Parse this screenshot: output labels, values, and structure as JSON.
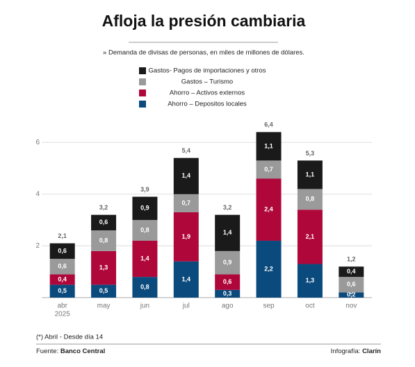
{
  "chart_data": {
    "type": "stacked_bar",
    "title": "Afloja la presión cambiaria",
    "subtitle": "» Demanda de divisas de personas, en miles de millones de dólares.",
    "categories": [
      "abr",
      "may",
      "jun",
      "jul",
      "ago",
      "sep",
      "oct",
      "nov"
    ],
    "x_sublabel": "2025",
    "series": [
      {
        "name": "Ahorro – Depositos locales",
        "color": "#0b4a7d",
        "values": [
          0.5,
          0.5,
          0.8,
          1.4,
          0.3,
          2.2,
          1.3,
          0.2
        ],
        "value_labels": [
          "0,5",
          "0,5",
          "0,8",
          "1,4",
          "0,3",
          "2,2",
          "1,3",
          "0,2"
        ]
      },
      {
        "name": "Ahorro – Activos externos",
        "color": "#b0073b",
        "values": [
          0.4,
          1.3,
          1.4,
          1.9,
          0.6,
          2.4,
          2.1,
          0
        ],
        "value_labels": [
          "0,4",
          "1,3",
          "1,4",
          "1,9",
          "0,6",
          "2,4",
          "2,1",
          "0"
        ]
      },
      {
        "name": "Gastos – Turismo",
        "color": "#9a9a9a",
        "values": [
          0.6,
          0.8,
          0.8,
          0.7,
          0.9,
          0.7,
          0.8,
          0.6
        ],
        "value_labels": [
          "0,6",
          "0,8",
          "0,8",
          "0,7",
          "0,9",
          "0,7",
          "0,8",
          "0,6"
        ]
      },
      {
        "name": "Gastos- Pagos de importaciones y otros",
        "color": "#1a1a1a",
        "values": [
          0.6,
          0.6,
          0.9,
          1.4,
          1.4,
          1.1,
          1.1,
          0.4
        ],
        "value_labels": [
          "0,6",
          "0,6",
          "0,9",
          "1,4",
          "1,4",
          "1,1",
          "1,1",
          "0,4"
        ]
      }
    ],
    "totals": [
      2.1,
      3.2,
      3.9,
      5.4,
      3.2,
      6.4,
      5.3,
      1.2
    ],
    "total_labels": [
      "2,1",
      "3,2",
      "3,9",
      "5,4",
      "3,2",
      "6,4",
      "5,3",
      "1,2"
    ],
    "ylim": [
      0,
      7
    ],
    "yticks": [
      2,
      4,
      6
    ],
    "grid": true,
    "note": "(*) Abril - Desde día 14",
    "source_label": "Fuente:",
    "source": "Banco Central",
    "credit_label": "Infografía:",
    "credit": "Clarín"
  }
}
